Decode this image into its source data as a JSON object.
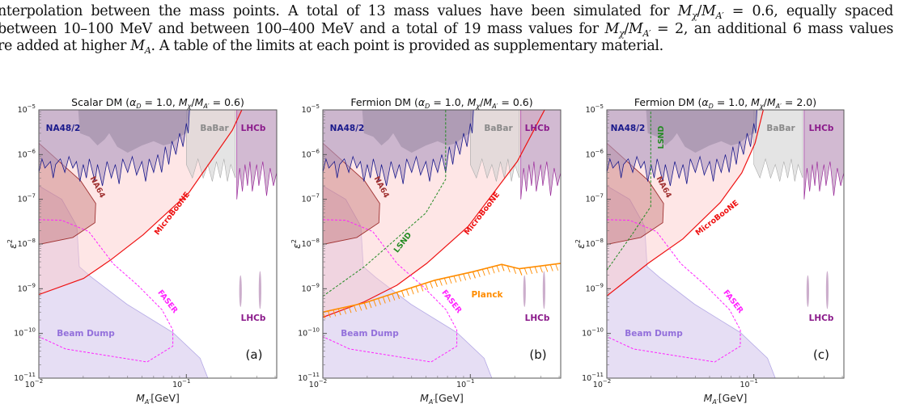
{
  "paragraph": {
    "line1": {
      "before": "nterpolation between the mass points.  A total of 13 mass values have been simulated for ",
      "m1": "M",
      "s1": "χ",
      "slash": "/",
      "m2": "M",
      "s2": "A′",
      "after": " = 0.6, equally spaced"
    },
    "line2": {
      "before": "between 10–100 MeV and between 100–400 MeV and a total of 19 mass values for ",
      "m1": "M",
      "s1": "χ",
      "slash": "/",
      "m2": "M",
      "s2": "A′",
      "after": " = 2, an additional 6 mass values"
    },
    "line3": {
      "before": "re added at higher ",
      "m1": "M",
      "s1": "A",
      "after": ". A table of the limits at each point is provided as supplementary material."
    }
  },
  "symbols": {
    "alpha": "α",
    "D": "D",
    "M": "M",
    "chi": "χ",
    "Aprime": "A′",
    "eq": " = ",
    "open": "  (",
    "close": ")",
    "comma": ", ",
    "slash": "/",
    "eps": "ε",
    "two": "2",
    "gev": "[GeV]",
    "ten": "10"
  },
  "colors": {
    "na48": "#1a1a8c",
    "babar": "#8a8a8a",
    "lhcb": "#8b1a8b",
    "na64": "#a03232",
    "microboone": "#ee1111",
    "faser": "#ff22ff",
    "beamdump": "#9370db",
    "lsnd": "#228b22",
    "planck": "#ff8c00"
  },
  "chart_data": [
    {
      "type": "area",
      "panel": "(a)",
      "title": {
        "name": "Scalar DM",
        "alpha_value": "1.0",
        "ratio_value": "0.6"
      },
      "xlabel": "M_A′[GeV]",
      "ylabel": "ε²",
      "xscale": "log",
      "yscale": "log",
      "xlim": [
        0.01,
        0.41
      ],
      "ylim": [
        1e-11,
        1e-05
      ],
      "xticks": [
        "−2",
        "−1"
      ],
      "yticks": [
        "−5",
        "−6",
        "−7",
        "−8",
        "−9",
        "−10",
        "−11"
      ],
      "labels": {
        "na48": "NA48/2",
        "babar": "BaBar",
        "lhcb": "LHCb",
        "lhcb2": "LHCb",
        "na64": "NA64",
        "microboone": "MicroBooNE",
        "faser": "FASER",
        "beamdump": "Beam Dump"
      },
      "microboone": [
        [
          0.01,
          7.4e-10
        ],
        [
          0.0201,
          1.7e-09
        ],
        [
          0.0307,
          4.4e-09
        ],
        [
          0.0509,
          1.6e-08
        ],
        [
          0.104,
          1.4e-07
        ],
        [
          0.205,
          3.5e-06
        ],
        [
          0.238,
          1e-05
        ]
      ]
    },
    {
      "type": "area",
      "panel": "(b)",
      "title": {
        "name": "Fermion DM",
        "alpha_value": "1.0",
        "ratio_value": "0.6"
      },
      "xlabel": "M_A′[GeV]",
      "ylabel": "ε²",
      "xscale": "log",
      "yscale": "log",
      "xlim": [
        0.01,
        0.41
      ],
      "ylim": [
        1e-11,
        1e-05
      ],
      "xticks": [
        "−2",
        "−1"
      ],
      "yticks": [
        "−5",
        "−6",
        "−7",
        "−8",
        "−9",
        "−10",
        "−11"
      ],
      "labels": {
        "na48": "NA48/2",
        "babar": "BaBar",
        "lhcb": "LHCb",
        "lhcb2": "LHCb",
        "na64": "NA64",
        "microboone": "MicroBooNE",
        "faser": "FASER",
        "beamdump": "Beam Dump",
        "lsnd": "LSND",
        "planck": "Planck"
      },
      "microboone": [
        [
          0.01,
          2.3e-10
        ],
        [
          0.0191,
          5.1e-10
        ],
        [
          0.0318,
          1.2e-09
        ],
        [
          0.0507,
          3.7e-09
        ],
        [
          0.097,
          2.5e-08
        ],
        [
          0.208,
          7e-07
        ],
        [
          0.319,
          1e-05
        ]
      ],
      "lsnd": [
        [
          0.01,
          6.8e-10
        ],
        [
          0.0191,
          3.1e-09
        ],
        [
          0.0498,
          4.9e-08
        ],
        [
          0.068,
          2.8e-07
        ],
        [
          0.068,
          1e-05
        ]
      ],
      "planck": [
        [
          0.01,
          3e-10
        ],
        [
          0.0191,
          4.8e-10
        ],
        [
          0.0318,
          8.3e-10
        ],
        [
          0.0575,
          1.55e-09
        ],
        [
          0.104,
          2.4e-09
        ],
        [
          0.163,
          3.5e-09
        ],
        [
          0.215,
          2.8e-09
        ],
        [
          0.41,
          3.7e-09
        ]
      ]
    },
    {
      "type": "area",
      "panel": "(c)",
      "title": {
        "name": "Fermion DM",
        "alpha_value": "1.0",
        "ratio_value": "2.0"
      },
      "xlabel": "M_A′[GeV]",
      "ylabel": "ε²",
      "xscale": "log",
      "yscale": "log",
      "xlim": [
        0.01,
        0.41
      ],
      "ylim": [
        1e-11,
        1e-05
      ],
      "xticks": [
        "−2",
        "−1"
      ],
      "yticks": [
        "−5",
        "−6",
        "−7",
        "−8",
        "−9",
        "−10",
        "−11"
      ],
      "labels": {
        "na48": "NA48/2",
        "babar": "BaBar",
        "lhcb": "LHCb",
        "lhcb2": "LHCb",
        "na64": "NA64",
        "microboone": "MicroBooNE",
        "faser": "FASER",
        "beamdump": "Beam Dump",
        "lsnd": "LSND"
      },
      "microboone": [
        [
          0.01,
          6.9e-10
        ],
        [
          0.0191,
          3.7e-09
        ],
        [
          0.0329,
          1.3e-08
        ],
        [
          0.0592,
          8.5e-08
        ],
        [
          0.0828,
          3.9e-07
        ],
        [
          0.102,
          1.8e-06
        ],
        [
          0.116,
          1e-05
        ]
      ],
      "lsnd": [
        [
          0.01,
          2.6e-09
        ],
        [
          0.0148,
          1.6e-08
        ],
        [
          0.0199,
          6.9e-08
        ],
        [
          0.0199,
          1e-05
        ]
      ]
    }
  ],
  "common_regions": {
    "na64": [
      [
        0.01,
        1.8e-06
      ],
      [
        0.0192,
        2.6e-07
      ],
      [
        0.0243,
        8.1e-08
      ],
      [
        0.024,
        3e-08
      ],
      [
        0.017,
        1.4e-08
      ],
      [
        0.01,
        9.8e-09
      ]
    ],
    "beamdump": [
      [
        0.01,
        2e-07
      ],
      [
        0.0143,
        1e-07
      ],
      [
        0.0181,
        2.5e-08
      ],
      [
        0.0188,
        3.1e-09
      ],
      [
        0.0228,
        1.8e-09
      ],
      [
        0.0395,
        4.5e-10
      ],
      [
        0.081,
        1.05e-10
      ],
      [
        0.124,
        2.8e-11
      ],
      [
        0.14,
        1e-11
      ]
    ],
    "faser": [
      [
        0.01,
        3.5e-08
      ],
      [
        0.0143,
        3.4e-08
      ],
      [
        0.0218,
        1.9e-08
      ],
      [
        0.032,
        3.6e-09
      ],
      [
        0.0468,
        1.2e-09
      ],
      [
        0.0684,
        3.4e-10
      ],
      [
        0.081,
        1.2e-10
      ],
      [
        0.081,
        5.2e-11
      ],
      [
        0.0542,
        2.3e-11
      ],
      [
        0.0152,
        4.5e-11
      ],
      [
        0.01,
        8.5e-11
      ]
    ],
    "na48": [
      [
        0.01,
        4e-07
      ],
      [
        0.0105,
        8e-07
      ],
      [
        0.011,
        5e-07
      ],
      [
        0.012,
        7e-07
      ],
      [
        0.0125,
        3e-07
      ],
      [
        0.013,
        6e-07
      ],
      [
        0.014,
        8e-07
      ],
      [
        0.015,
        4e-07
      ],
      [
        0.016,
        9e-07
      ],
      [
        0.017,
        5e-07
      ],
      [
        0.018,
        7e-07
      ],
      [
        0.019,
        2.5e-07
      ],
      [
        0.02,
        6e-07
      ],
      [
        0.021,
        3e-07
      ],
      [
        0.022,
        8e-07
      ],
      [
        0.024,
        2.5e-07
      ],
      [
        0.025,
        6e-07
      ],
      [
        0.027,
        2e-07
      ],
      [
        0.029,
        7e-07
      ],
      [
        0.031,
        3e-07
      ],
      [
        0.033,
        6e-07
      ],
      [
        0.035,
        2.2e-07
      ],
      [
        0.037,
        8e-07
      ],
      [
        0.04,
        4e-07
      ],
      [
        0.043,
        9e-07
      ],
      [
        0.046,
        3.5e-07
      ],
      [
        0.05,
        7e-07
      ],
      [
        0.053,
        2.5e-07
      ],
      [
        0.056,
        8e-07
      ],
      [
        0.06,
        4e-07
      ],
      [
        0.064,
        1e-06
      ],
      [
        0.068,
        4e-07
      ],
      [
        0.072,
        1.5e-06
      ],
      [
        0.076,
        6e-07
      ],
      [
        0.08,
        2e-06
      ],
      [
        0.085,
        1e-06
      ],
      [
        0.09,
        3e-06
      ],
      [
        0.095,
        1.5e-06
      ],
      [
        0.1,
        5e-06
      ],
      [
        0.103,
        3e-06
      ],
      [
        0.105,
        1e-05
      ]
    ],
    "na48_inner": [
      [
        0.0185,
        1e-05
      ],
      [
        0.019,
        3e-06
      ],
      [
        0.022,
        2.5e-06
      ],
      [
        0.025,
        1.6e-06
      ],
      [
        0.028,
        2.2e-06
      ],
      [
        0.03,
        3e-06
      ],
      [
        0.034,
        1.5e-06
      ],
      [
        0.04,
        1.1e-06
      ],
      [
        0.05,
        1.6e-06
      ],
      [
        0.06,
        2e-06
      ],
      [
        0.07,
        1.6e-06
      ],
      [
        0.08,
        1.8e-06
      ],
      [
        0.09,
        2.5e-06
      ],
      [
        0.1,
        3e-06
      ],
      [
        0.105,
        1e-05
      ]
    ],
    "babar": [
      [
        0.1,
        6e-07
      ],
      [
        0.11,
        3e-07
      ],
      [
        0.12,
        8e-07
      ],
      [
        0.13,
        3e-07
      ],
      [
        0.14,
        6e-07
      ],
      [
        0.15,
        2.5e-07
      ],
      [
        0.16,
        7e-07
      ],
      [
        0.17,
        3e-07
      ],
      [
        0.18,
        8e-07
      ],
      [
        0.19,
        2.5e-07
      ],
      [
        0.2,
        6e-07
      ],
      [
        0.215,
        3e-07
      ]
    ],
    "lhcb": [
      [
        0.22,
        1e-07
      ],
      [
        0.23,
        5e-07
      ],
      [
        0.24,
        1.5e-07
      ],
      [
        0.25,
        6e-07
      ],
      [
        0.26,
        2e-07
      ],
      [
        0.27,
        7e-07
      ],
      [
        0.28,
        1.5e-07
      ],
      [
        0.3,
        6e-07
      ],
      [
        0.31,
        2e-07
      ],
      [
        0.33,
        7e-07
      ],
      [
        0.35,
        1.2e-07
      ],
      [
        0.37,
        5e-07
      ],
      [
        0.39,
        2e-07
      ],
      [
        0.41,
        4e-07
      ]
    ],
    "lhcb_islands": [
      [
        0.233,
        2e-09,
        3.9e-10
      ],
      [
        0.316,
        2.5e-09,
        3.5e-10
      ]
    ]
  }
}
